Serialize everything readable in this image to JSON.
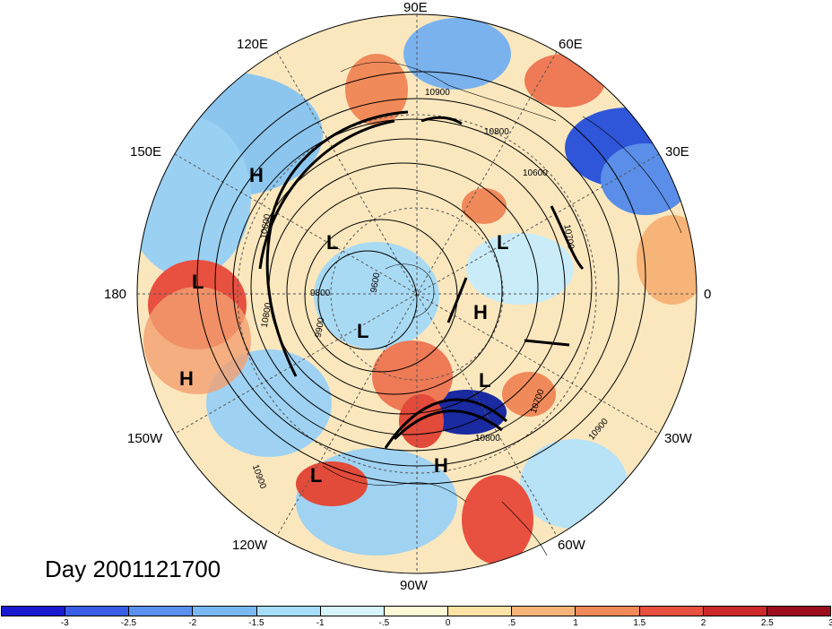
{
  "lon_labels": {
    "top": "90E",
    "top_right1": "60E",
    "right_upper": "30E",
    "right": "0",
    "right_lower": "30W",
    "bottom_right": "60W",
    "bottom": "90W",
    "bottom_left": "120W",
    "left_lower": "150W",
    "left": "180",
    "left_upper": "150E",
    "top_left": "120E"
  },
  "pressure_systems": [
    "H",
    "L",
    "L",
    "H",
    "L",
    "L",
    "H",
    "L",
    "H",
    "L"
  ],
  "contour_labels": [
    "10900",
    "10800",
    "10600",
    "10700",
    "9800",
    "9600",
    "9900",
    "10600",
    "10800",
    "10700",
    "10900",
    "10800",
    "10900"
  ],
  "day_label": "Day 2001121700",
  "colorbar": {
    "colors": [
      "#1a1ad0",
      "#3a5fe6",
      "#5a90f0",
      "#7ab8f4",
      "#a6defa",
      "#d8f4fb",
      "#fdf8d6",
      "#fbe3a6",
      "#f6b478",
      "#f08a5a",
      "#e85040",
      "#cc2a2a",
      "#9a0e1e"
    ],
    "ticks": [
      "-3",
      "-2.5",
      "-2",
      "-1.5",
      "-1",
      "-.5",
      "0",
      ".5",
      "1",
      "1.5",
      "2",
      "2.5",
      "3"
    ]
  },
  "colors": {
    "background": "#ffffff",
    "ocean_land_line": "#000000"
  }
}
